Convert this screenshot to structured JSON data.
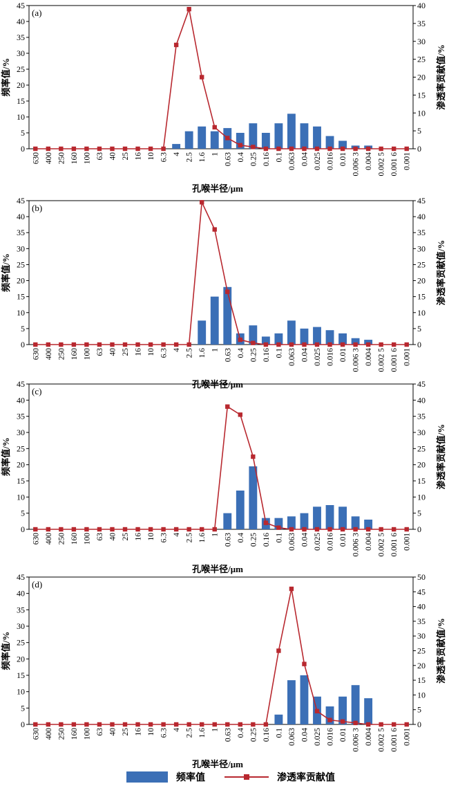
{
  "colors": {
    "bar": "#3b6fb6",
    "line": "#b8282f"
  },
  "legend": {
    "bar_label": "频率值",
    "line_label": "渗透率贡献值"
  },
  "chart_data": [
    {
      "type": "bar",
      "tag": "(a)",
      "xlabel": "孔喉半径/μm",
      "ylabel_left": "频率值/%",
      "ylabel_right": "渗透率贡献值/%",
      "left_ylim": [
        0,
        45
      ],
      "left_ticks": [
        0,
        5,
        10,
        15,
        20,
        25,
        30,
        35,
        40,
        45
      ],
      "right_ylim": [
        0,
        40
      ],
      "right_ticks": [
        0,
        5,
        10,
        15,
        20,
        25,
        30,
        35,
        40
      ],
      "categories": [
        "630",
        "400",
        "250",
        "160",
        "100",
        "63",
        "40",
        "25",
        "16",
        "10",
        "6.3",
        "4",
        "2.5",
        "1.6",
        "1",
        "0.63",
        "0.4",
        "0.25",
        "0.16",
        "0.1",
        "0.063",
        "0.04",
        "0.025",
        "0.016",
        "0.01",
        "0.006 3",
        "0.004",
        "0.002 5",
        "0.001 6",
        "0.001"
      ],
      "series": [
        {
          "name": "频率值",
          "axis": "left",
          "values": [
            0,
            0,
            0,
            0,
            0,
            0,
            0,
            0,
            0,
            0,
            0,
            1.5,
            5.5,
            7,
            5.5,
            6.5,
            5,
            8,
            5,
            8,
            11,
            8,
            7,
            4,
            2.5,
            1,
            1,
            0,
            0,
            0
          ]
        },
        {
          "name": "渗透率贡献值",
          "axis": "right",
          "values": [
            0,
            0,
            0,
            0,
            0,
            0,
            0,
            0,
            0,
            0,
            0,
            29,
            39,
            20,
            6,
            3,
            1,
            0.5,
            0,
            0,
            0,
            0,
            0,
            0,
            0,
            0,
            0,
            0,
            0,
            0
          ]
        }
      ]
    },
    {
      "type": "bar",
      "tag": "(b)",
      "xlabel": "孔喉半径/μm",
      "ylabel_left": "频率值/%",
      "ylabel_right": "渗透率贡献值/%",
      "left_ylim": [
        0,
        45
      ],
      "left_ticks": [
        0,
        5,
        10,
        15,
        20,
        25,
        30,
        35,
        40,
        45
      ],
      "right_ylim": [
        0,
        45
      ],
      "right_ticks": [
        0,
        5,
        10,
        15,
        20,
        25,
        30,
        35,
        40,
        45
      ],
      "categories": [
        "630",
        "400",
        "250",
        "160",
        "100",
        "63",
        "40",
        "25",
        "16",
        "10",
        "6.3",
        "4",
        "2.5",
        "1.6",
        "1",
        "0.63",
        "0.4",
        "0.25",
        "0.16",
        "0.1",
        "0.063",
        "0.04",
        "0.025",
        "0.016",
        "0.01",
        "0.006 3",
        "0.004",
        "0.002 5",
        "0.001 6",
        "0.001"
      ],
      "series": [
        {
          "name": "频率值",
          "axis": "left",
          "values": [
            0,
            0,
            0,
            0,
            0,
            0,
            0,
            0,
            0,
            0,
            0,
            0,
            0,
            7.5,
            15,
            18,
            3.5,
            6,
            2.5,
            3.5,
            7.5,
            5,
            5.5,
            4.5,
            3.5,
            2,
            1.5,
            0,
            0,
            0
          ]
        },
        {
          "name": "渗透率贡献值",
          "axis": "right",
          "values": [
            0,
            0,
            0,
            0,
            0,
            0,
            0,
            0,
            0,
            0,
            0,
            0,
            0,
            44.5,
            36,
            16.5,
            1.5,
            0.5,
            0,
            0,
            0,
            0,
            0,
            0,
            0,
            0,
            0,
            0,
            0,
            0
          ]
        }
      ]
    },
    {
      "type": "bar",
      "tag": "(c)",
      "xlabel": "孔喉半径/μm",
      "ylabel_left": "频率值/%",
      "ylabel_right": "渗透率贡献值/%",
      "left_ylim": [
        0,
        45
      ],
      "left_ticks": [
        0,
        5,
        10,
        15,
        20,
        25,
        30,
        35,
        40,
        45
      ],
      "right_ylim": [
        0,
        45
      ],
      "right_ticks": [
        0,
        5,
        10,
        15,
        20,
        25,
        30,
        35,
        40,
        45
      ],
      "categories": [
        "630",
        "400",
        "250",
        "160",
        "100",
        "63",
        "40",
        "25",
        "16",
        "10",
        "6.3",
        "4",
        "2.5",
        "1.6",
        "1",
        "0.63",
        "0.4",
        "0.25",
        "0.16",
        "0.1",
        "0.063",
        "0.04",
        "0.025",
        "0.016",
        "0.01",
        "0.006 3",
        "0.004",
        "0.002 5",
        "0.001 6",
        "0.001"
      ],
      "series": [
        {
          "name": "频率值",
          "axis": "left",
          "values": [
            0,
            0,
            0,
            0,
            0,
            0,
            0,
            0,
            0,
            0,
            0,
            0,
            0,
            0,
            0,
            5,
            12,
            19.5,
            3.5,
            3.5,
            4,
            5,
            7,
            7.5,
            7,
            4,
            3,
            0,
            0,
            0
          ]
        },
        {
          "name": "渗透率贡献值",
          "axis": "right",
          "values": [
            0,
            0,
            0,
            0,
            0,
            0,
            0,
            0,
            0,
            0,
            0,
            0,
            0,
            0,
            0,
            38,
            35.5,
            22.5,
            2,
            0.5,
            0,
            0,
            0,
            0,
            0,
            0,
            0,
            0,
            0,
            0
          ]
        }
      ]
    },
    {
      "type": "bar",
      "tag": "(d)",
      "xlabel": "孔喉半径/μm",
      "ylabel_left": "频率值/%",
      "ylabel_right": "渗透率贡献值/%",
      "left_ylim": [
        0,
        45
      ],
      "left_ticks": [
        0,
        5,
        10,
        15,
        20,
        25,
        30,
        35,
        40,
        45
      ],
      "right_ylim": [
        0,
        50
      ],
      "right_ticks": [
        0,
        5,
        10,
        15,
        20,
        25,
        30,
        35,
        40,
        45,
        50
      ],
      "categories": [
        "630",
        "400",
        "250",
        "160",
        "100",
        "63",
        "40",
        "25",
        "16",
        "10",
        "6.3",
        "4",
        "2.5",
        "1.6",
        "1",
        "0.63",
        "0.4",
        "0.25",
        "0.16",
        "0.1",
        "0.063",
        "0.04",
        "0.025",
        "0.016",
        "0.01",
        "0.006 3",
        "0.004",
        "0.002 5",
        "0.001 6",
        "0.001"
      ],
      "series": [
        {
          "name": "频率值",
          "axis": "left",
          "values": [
            0,
            0,
            0,
            0,
            0,
            0,
            0,
            0,
            0,
            0,
            0,
            0,
            0,
            0,
            0,
            0,
            0,
            0,
            0,
            3,
            13.5,
            15,
            8.5,
            5.5,
            8.5,
            12,
            8,
            0,
            0,
            0
          ]
        },
        {
          "name": "渗透率贡献值",
          "axis": "right",
          "values": [
            0,
            0,
            0,
            0,
            0,
            0,
            0,
            0,
            0,
            0,
            0,
            0,
            0,
            0,
            0,
            0,
            0,
            0,
            0,
            25,
            46,
            20.5,
            4.5,
            1.5,
            1,
            0.5,
            0,
            0,
            0,
            0
          ]
        }
      ]
    }
  ]
}
